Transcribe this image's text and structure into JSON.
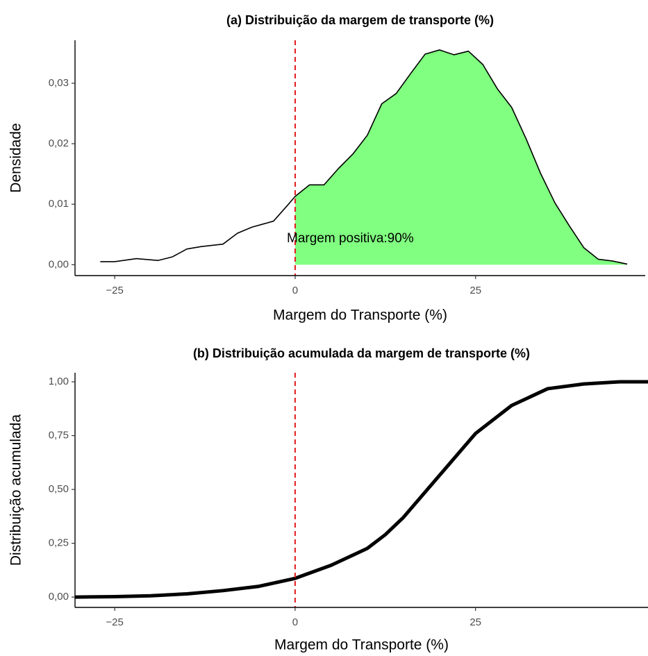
{
  "chart_data": [
    {
      "type": "area",
      "title": "(a) Distribuição da margem de transporte (%)",
      "x_label": "Margem do Transporte (%)",
      "y_label": "Densidade",
      "annotation": "Margem positiva:90%",
      "x": [
        -27,
        -25,
        -22,
        -19,
        -17,
        -15,
        -13,
        -10,
        -8,
        -6,
        -3,
        -1,
        0,
        2,
        4,
        6,
        8,
        10,
        12,
        14,
        16,
        18,
        20,
        22,
        24,
        26,
        28,
        30,
        32,
        34,
        36,
        38,
        40,
        42,
        44,
        46
      ],
      "values": [
        0.0005,
        0.0005,
        0.001,
        0.0007,
        0.0013,
        0.0026,
        0.003,
        0.0034,
        0.0052,
        0.0062,
        0.0072,
        0.0099,
        0.0113,
        0.0132,
        0.0132,
        0.0159,
        0.0183,
        0.0214,
        0.0266,
        0.0283,
        0.0316,
        0.0348,
        0.0355,
        0.0347,
        0.0353,
        0.0331,
        0.0291,
        0.026,
        0.0208,
        0.0151,
        0.0102,
        0.0064,
        0.0028,
        0.0009,
        0.0006,
        0.0001
      ],
      "color": "#000000",
      "fill_color": "#80ff80",
      "vline": 0,
      "vline_color": "#e41a1c",
      "xlim": [
        -30.5,
        48.5
      ],
      "ylim": [
        -0.0018,
        0.0371
      ],
      "xticks": [
        {
          "value": -25,
          "label": "−25"
        },
        0,
        25
      ],
      "yticks": [
        {
          "value": 0,
          "label": "0,00"
        },
        {
          "value": 0.01,
          "label": "0,01"
        },
        {
          "value": 0.02,
          "label": "0,02"
        },
        {
          "value": 0.03,
          "label": "0,03"
        }
      ]
    },
    {
      "type": "line",
      "title": "(b) Distribuição acumulada da margem de transporte (%)",
      "x_label": "Margem do Transporte (%)",
      "y_label": "Distribuição acumulada",
      "x": [
        -30.5,
        -25,
        -20,
        -15,
        -10,
        -5,
        0,
        5,
        10,
        12.5,
        15,
        20,
        25,
        30,
        35,
        40,
        45,
        48.9
      ],
      "values": [
        0,
        0.002,
        0.006,
        0.015,
        0.03,
        0.05,
        0.087,
        0.148,
        0.226,
        0.29,
        0.37,
        0.565,
        0.76,
        0.89,
        0.968,
        0.99,
        1,
        1
      ],
      "color": "#000000",
      "vline": 0,
      "vline_color": "#e41a1c",
      "xlim": [
        -30.5,
        48.9
      ],
      "ylim": [
        -0.048,
        1.042
      ],
      "xticks": [
        {
          "value": -25,
          "label": "−25"
        },
        0,
        25
      ],
      "yticks": [
        {
          "value": 0,
          "label": "0,00"
        },
        {
          "value": 0.25,
          "label": "0,25"
        },
        {
          "value": 0.5,
          "label": "0,50"
        },
        {
          "value": 0.75,
          "label": "0,75"
        },
        {
          "value": 1,
          "label": "1,00"
        }
      ]
    }
  ]
}
